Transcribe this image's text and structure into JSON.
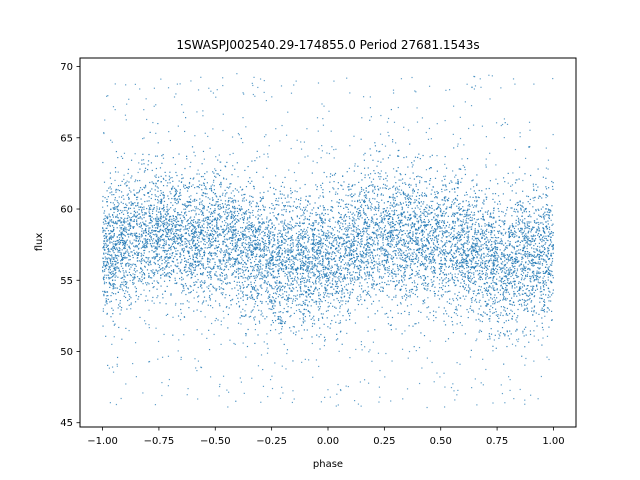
{
  "chart_data": {
    "type": "scatter",
    "title": "1SWASPJ002540.29-174855.0 Period 27681.1543s",
    "xlabel": "phase",
    "ylabel": "flux",
    "xlim": [
      -1.1,
      1.1
    ],
    "ylim": [
      44.7,
      70.6
    ],
    "xticks": [
      -1.0,
      -0.75,
      -0.5,
      -0.25,
      0.0,
      0.25,
      0.5,
      0.75,
      1.0
    ],
    "xtick_labels": [
      "−1.00",
      "−0.75",
      "−0.50",
      "−0.25",
      "0.00",
      "0.25",
      "0.50",
      "0.75",
      "1.00"
    ],
    "yticks": [
      45,
      50,
      55,
      60,
      65,
      70
    ],
    "ytick_labels": [
      "45",
      "50",
      "55",
      "60",
      "65",
      "70"
    ],
    "grid": false,
    "legend": "none",
    "marker_color": "#1f77b4",
    "series": [
      {
        "x_range": [
          -1.0,
          1.0
        ],
        "y_range": [
          46,
          69.5
        ],
        "mean_flux_by_phase": [
          {
            "phase": -1.0,
            "flux": 57.0
          },
          {
            "phase": -0.75,
            "flux": 58.4
          },
          {
            "phase": -0.5,
            "flux": 57.9
          },
          {
            "phase": -0.2,
            "flux": 56.2
          },
          {
            "phase": 0.0,
            "flux": 56.6
          },
          {
            "phase": 0.25,
            "flux": 58.3
          },
          {
            "phase": 0.5,
            "flux": 57.7
          },
          {
            "phase": 0.8,
            "flux": 56.2
          },
          {
            "phase": 1.0,
            "flux": 57.0
          }
        ],
        "core_spread": 2.3
      }
    ]
  }
}
